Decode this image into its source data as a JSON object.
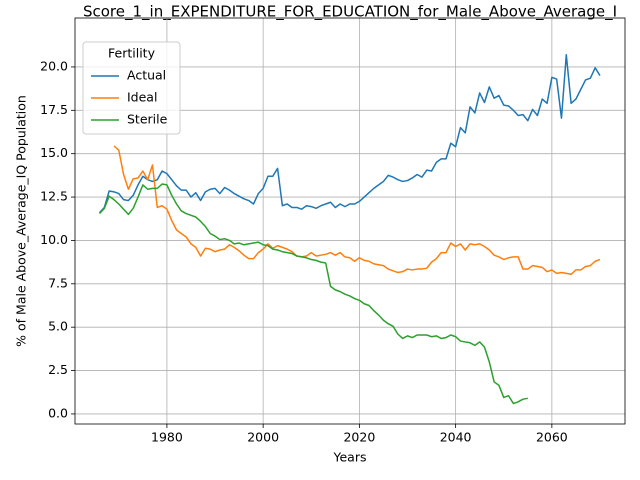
{
  "chart_data": {
    "type": "line",
    "title": "Score_1_in_EXPENDITURE_FOR_EDUCATION_for_Male_Above_Average_I",
    "xlabel": "Years",
    "ylabel": "% of Male Above_Average_IQ Population",
    "legend_title": "Fertility",
    "legend_loc": "upper left",
    "grid": true,
    "xlim": [
      1960.9,
      2075.2
    ],
    "ylim": [
      -0.58,
      22.82
    ],
    "xticks": [
      1980,
      2000,
      2020,
      2040,
      2060
    ],
    "yticks": [
      {
        "value": 0,
        "label": "0.0"
      },
      {
        "value": 2.5,
        "label": "2.5"
      },
      {
        "value": 5,
        "label": "5.0"
      },
      {
        "value": 7.5,
        "label": "7.5"
      },
      {
        "value": 10,
        "label": "10.0"
      },
      {
        "value": 12.5,
        "label": "12.5"
      },
      {
        "value": 15,
        "label": "15.0"
      },
      {
        "value": 17.5,
        "label": "17.5"
      },
      {
        "value": 20,
        "label": "20.0"
      }
    ],
    "x": [
      1966,
      1967,
      1968,
      1969,
      1970,
      1971,
      1972,
      1973,
      1974,
      1975,
      1976,
      1977,
      1978,
      1979,
      1980,
      1981,
      1982,
      1983,
      1984,
      1985,
      1986,
      1987,
      1988,
      1989,
      1990,
      1991,
      1992,
      1993,
      1994,
      1995,
      1996,
      1997,
      1998,
      1999,
      2000,
      2001,
      2002,
      2003,
      2004,
      2005,
      2006,
      2007,
      2008,
      2009,
      2010,
      2011,
      2012,
      2013,
      2014,
      2015,
      2016,
      2017,
      2018,
      2019,
      2020,
      2021,
      2022,
      2023,
      2024,
      2025,
      2026,
      2027,
      2028,
      2029,
      2030,
      2031,
      2032,
      2033,
      2034,
      2035,
      2036,
      2037,
      2038,
      2039,
      2040,
      2041,
      2042,
      2043,
      2044,
      2045,
      2046,
      2047,
      2048,
      2049,
      2050,
      2051,
      2052,
      2053,
      2054,
      2055,
      2056,
      2057,
      2058,
      2059,
      2060,
      2061,
      2062,
      2063,
      2064,
      2065,
      2066,
      2067,
      2068,
      2069,
      2070
    ],
    "series": [
      {
        "name": "Actual",
        "color": "#1f77b4",
        "values": [
          11.6,
          11.9,
          12.85,
          12.8,
          12.7,
          12.35,
          12.3,
          12.6,
          13.2,
          13.7,
          13.5,
          13.4,
          13.5,
          14.0,
          13.85,
          13.5,
          13.15,
          12.9,
          12.9,
          12.5,
          12.75,
          12.3,
          12.8,
          12.95,
          13.0,
          12.7,
          13.05,
          12.9,
          12.7,
          12.55,
          12.4,
          12.3,
          12.1,
          12.7,
          13.0,
          13.7,
          13.7,
          14.15,
          12.0,
          12.1,
          11.9,
          11.9,
          11.8,
          12.0,
          11.95,
          11.85,
          12.0,
          12.1,
          12.2,
          11.9,
          12.1,
          11.95,
          12.1,
          12.1,
          12.25,
          12.5,
          12.75,
          13.0,
          13.2,
          13.4,
          13.75,
          13.65,
          13.5,
          13.4,
          13.45,
          13.6,
          13.8,
          13.65,
          14.05,
          14.0,
          14.5,
          14.7,
          14.7,
          15.6,
          15.4,
          16.5,
          16.2,
          17.7,
          17.35,
          18.5,
          17.95,
          18.85,
          18.2,
          18.35,
          17.8,
          17.75,
          17.5,
          17.2,
          17.25,
          16.9,
          17.55,
          17.2,
          18.15,
          17.9,
          19.4,
          19.3,
          17.05,
          20.7,
          17.9,
          18.15,
          18.7,
          19.25,
          19.35,
          19.95,
          19.5
        ]
      },
      {
        "name": "Ideal",
        "color": "#ff7f0e",
        "values": [
          null,
          null,
          null,
          15.45,
          15.2,
          13.8,
          12.95,
          13.55,
          13.6,
          14.0,
          13.5,
          14.35,
          11.9,
          12.0,
          11.8,
          11.15,
          10.6,
          10.4,
          10.2,
          9.8,
          9.6,
          9.1,
          9.55,
          9.5,
          9.35,
          9.45,
          9.5,
          9.75,
          9.6,
          9.4,
          9.15,
          8.95,
          8.95,
          9.3,
          9.5,
          9.8,
          9.55,
          9.7,
          9.6,
          9.5,
          9.35,
          9.1,
          9.05,
          9.1,
          9.3,
          9.1,
          9.15,
          9.2,
          9.3,
          9.15,
          9.3,
          9.05,
          9.0,
          8.8,
          9.0,
          8.85,
          8.8,
          8.65,
          8.6,
          8.55,
          8.35,
          8.25,
          8.15,
          8.2,
          8.35,
          8.3,
          8.35,
          8.35,
          8.4,
          8.75,
          8.95,
          9.3,
          9.3,
          9.85,
          9.65,
          9.8,
          9.45,
          9.8,
          9.75,
          9.8,
          9.65,
          9.45,
          9.15,
          9.05,
          8.9,
          9.0,
          9.05,
          9.05,
          8.35,
          8.35,
          8.55,
          8.5,
          8.45,
          8.2,
          8.3,
          8.1,
          8.15,
          8.1,
          8.05,
          8.3,
          8.3,
          8.5,
          8.55,
          8.8,
          8.9
        ]
      },
      {
        "name": "Sterile",
        "color": "#2ca02c",
        "values": [
          11.55,
          11.85,
          12.55,
          12.35,
          12.1,
          11.8,
          11.5,
          11.85,
          12.5,
          13.2,
          12.95,
          13.0,
          13.0,
          13.25,
          13.2,
          12.6,
          12.1,
          11.7,
          11.55,
          11.45,
          11.35,
          11.1,
          10.8,
          10.4,
          10.25,
          10.05,
          10.1,
          10.0,
          9.8,
          9.85,
          9.75,
          9.8,
          9.85,
          9.9,
          9.75,
          9.7,
          9.5,
          9.45,
          9.35,
          9.3,
          9.25,
          9.1,
          9.05,
          9.0,
          8.9,
          8.85,
          8.75,
          8.7,
          7.35,
          7.15,
          7.05,
          6.9,
          6.8,
          6.65,
          6.55,
          6.35,
          6.25,
          5.95,
          5.7,
          5.4,
          5.2,
          5.05,
          4.6,
          4.35,
          4.5,
          4.4,
          4.55,
          4.55,
          4.55,
          4.45,
          4.5,
          4.35,
          4.4,
          4.55,
          4.45,
          4.2,
          4.15,
          4.1,
          3.95,
          4.15,
          3.85,
          3.0,
          1.85,
          1.65,
          0.95,
          1.05,
          0.6,
          0.7,
          0.85,
          0.9,
          null,
          null,
          null,
          null,
          null,
          null,
          null,
          null,
          null,
          null,
          null,
          null,
          null,
          null,
          null
        ]
      }
    ]
  }
}
